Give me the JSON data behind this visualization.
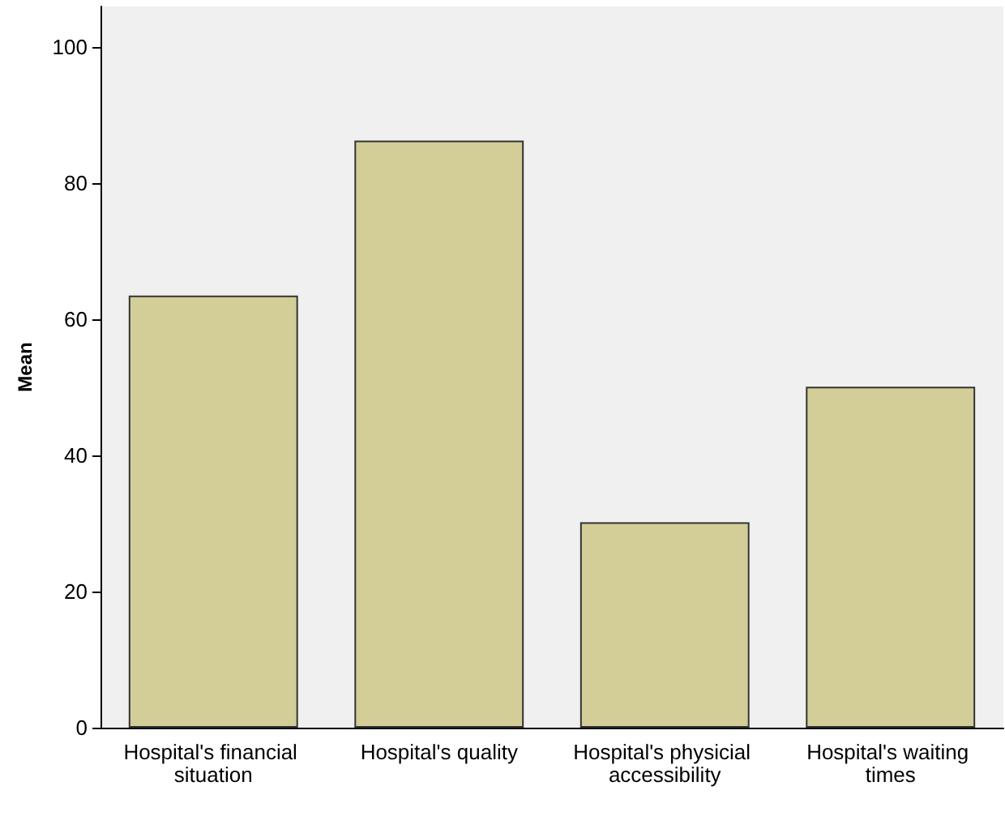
{
  "chart_data": {
    "type": "bar",
    "ylabel": "Mean",
    "categories": [
      "Hospital's financial situation",
      "Hospital's quality",
      "Hospital's physicial accessibility",
      "Hospital's waiting times"
    ],
    "values": [
      63.5,
      86.3,
      30.2,
      50.1
    ],
    "color": "#d3ce97",
    "ylim": [
      0,
      106
    ],
    "yticks": [
      0,
      20,
      40,
      60,
      80,
      100
    ],
    "grid": false
  }
}
